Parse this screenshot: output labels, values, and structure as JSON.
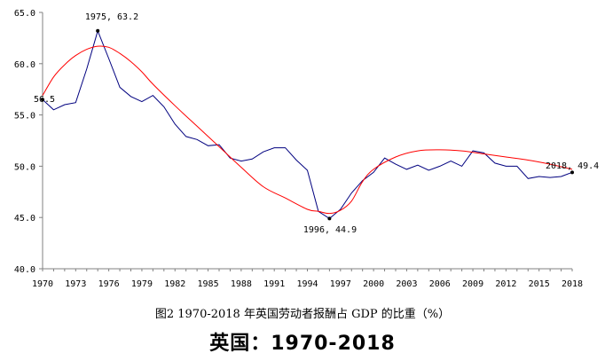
{
  "caption": "图2  1970-2018 年英国劳动者报酬占 GDP 的比重（%）",
  "subtitle": "英国：1970-2018",
  "chart_data": {
    "type": "line",
    "title": "",
    "xlabel": "",
    "ylabel": "",
    "ylim": [
      40,
      65
    ],
    "xlim": [
      1970,
      2018
    ],
    "y_ticks": [
      "40.0",
      "45.0",
      "50.0",
      "55.0",
      "60.0",
      "65.0"
    ],
    "x_ticks": [
      "1970",
      "1973",
      "1976",
      "1979",
      "1982",
      "1985",
      "1988",
      "1991",
      "1994",
      "1997",
      "2000",
      "2003",
      "2006",
      "2009",
      "2012",
      "2015",
      "2018"
    ],
    "grid": false,
    "colors": {
      "series": "#00007f",
      "trend": "#ff0000",
      "axis": "#808080"
    },
    "series": [
      {
        "x": [
          1970,
          1971,
          1972,
          1973,
          1974,
          1975,
          1976,
          1977,
          1978,
          1979,
          1980,
          1981,
          1982,
          1983,
          1984,
          1985,
          1986,
          1987,
          1988,
          1989,
          1990,
          1991,
          1992,
          1993,
          1994,
          1995,
          1996,
          1997,
          1998,
          1999,
          2000,
          2001,
          2002,
          2003,
          2004,
          2005,
          2006,
          2007,
          2008,
          2009,
          2010,
          2011,
          2012,
          2013,
          2014,
          2015,
          2016,
          2017,
          2018
        ],
        "values": [
          56.5,
          55.5,
          56.0,
          56.2,
          59.5,
          63.2,
          60.5,
          57.7,
          56.8,
          56.3,
          56.9,
          55.8,
          54.1,
          52.9,
          52.6,
          52.0,
          52.1,
          50.8,
          50.5,
          50.7,
          51.4,
          51.8,
          51.8,
          50.6,
          49.6,
          45.6,
          44.9,
          45.8,
          47.4,
          48.6,
          49.4,
          50.8,
          50.2,
          49.7,
          50.1,
          49.6,
          50.0,
          50.5,
          50.0,
          51.5,
          51.3,
          50.3,
          50.0,
          50.0,
          48.8,
          49.0,
          48.9,
          49.0,
          49.4
        ]
      },
      {
        "x": [
          1970,
          1971,
          1972,
          1973,
          1974,
          1975,
          1976,
          1977,
          1978,
          1979,
          1980,
          1982,
          1984,
          1986,
          1988,
          1990,
          1992,
          1994,
          1995,
          1996,
          1997,
          1998,
          1999,
          2000,
          2002,
          2004,
          2006,
          2008,
          2010,
          2012,
          2014,
          2016,
          2018
        ],
        "values": [
          56.9,
          58.7,
          59.9,
          60.8,
          61.4,
          61.7,
          61.6,
          61.0,
          60.2,
          59.2,
          58.0,
          55.9,
          53.9,
          51.9,
          49.9,
          48.0,
          46.9,
          45.8,
          45.6,
          45.4,
          45.7,
          46.6,
          48.5,
          49.7,
          50.9,
          51.5,
          51.6,
          51.5,
          51.2,
          50.9,
          50.6,
          50.2,
          49.7
        ]
      }
    ],
    "annotations": [
      "1975, 63.2",
      "56.5",
      "1996, 44.9",
      "2018, 49.4"
    ]
  }
}
